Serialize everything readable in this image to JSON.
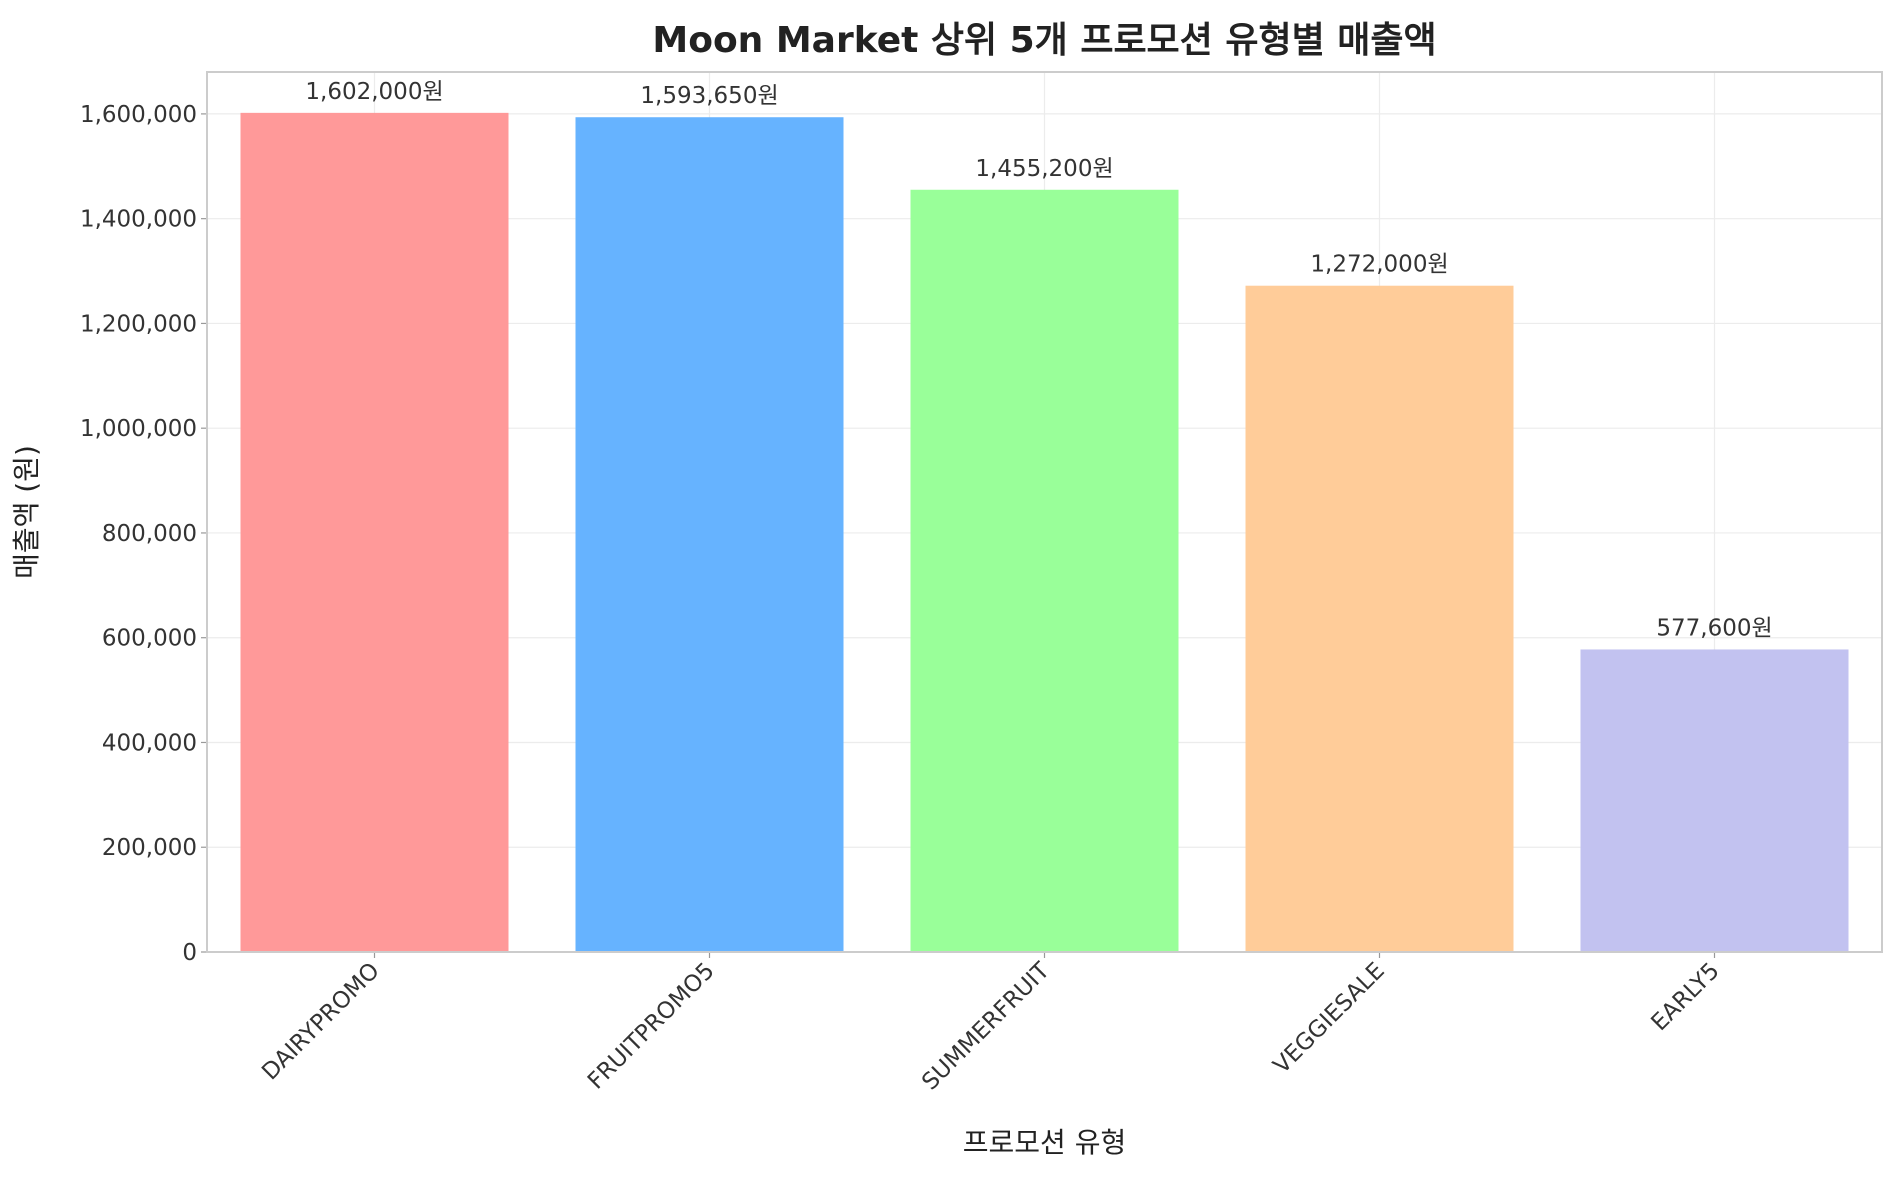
{
  "chart_data": {
    "type": "bar",
    "title": "Moon Market 상위 5개 프로모션 유형별 매출액",
    "xlabel": "프로모션 유형",
    "ylabel": "매출액 (원)",
    "categories": [
      "DAIRYPROMO",
      "FRUITPROMO5",
      "SUMMERFRUIT",
      "VEGGIESALE",
      "EARLY5"
    ],
    "values": [
      1602000,
      1593650,
      1455200,
      1272000,
      577600
    ],
    "value_labels": [
      "1,602,000원",
      "1,593,650원",
      "1,455,200원",
      "1,272,000원",
      "577,600원"
    ],
    "colors": [
      "#ff9999",
      "#66b3ff",
      "#99ff99",
      "#ffcc99",
      "#c2c2f0"
    ],
    "ylim": [
      0,
      1680000
    ],
    "yticks": [
      0,
      200000,
      400000,
      600000,
      800000,
      1000000,
      1200000,
      1400000,
      1600000
    ],
    "ytick_labels": [
      "0",
      "200,000",
      "400,000",
      "600,000",
      "800,000",
      "1,000,000",
      "1,200,000",
      "1,400,000",
      "1,600,000"
    ],
    "grid": true,
    "legend": "none"
  }
}
